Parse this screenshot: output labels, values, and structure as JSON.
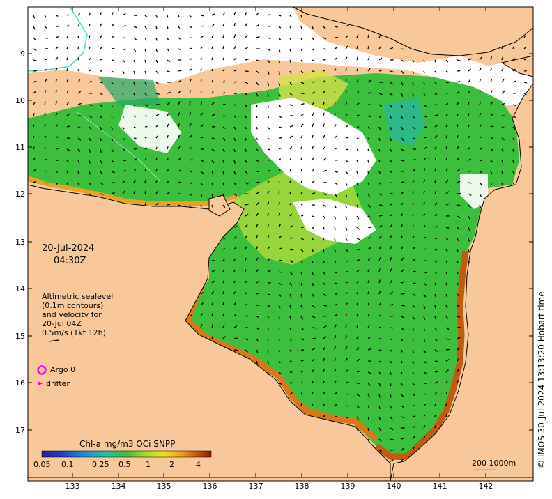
{
  "map": {
    "y_ticks": [
      "9",
      "10",
      "11",
      "12",
      "13",
      "14",
      "15",
      "16",
      "17"
    ],
    "x_ticks": [
      "133",
      "134",
      "135",
      "136",
      "137",
      "138",
      "139",
      "140",
      "141",
      "142"
    ],
    "date": "20-Jul-2024",
    "time": "04:30Z",
    "altimetry_note": [
      "Altimetric sealevel",
      "(0.1m contours)",
      "and velocity for",
      "20-Jul 04Z",
      "0.5m/s (1kt 12h)"
    ],
    "argo_label": "Argo 0",
    "drifter_label": "drifter",
    "colorbar_title": "Chl-a mg/m3 OCi SNPP",
    "colorbar_ticks": [
      "0.05",
      "0.1",
      "0.25",
      "0.5",
      "1",
      "2",
      "4"
    ],
    "scale_label": "200  1000m",
    "credit": "© IMOS 30-Jul-2024 13:13:20 Hobart time",
    "colors": {
      "land": "#f8c89a",
      "argo": "#ff00ff",
      "drifter": "#ff00ff",
      "contour": "#40e0d0"
    }
  }
}
